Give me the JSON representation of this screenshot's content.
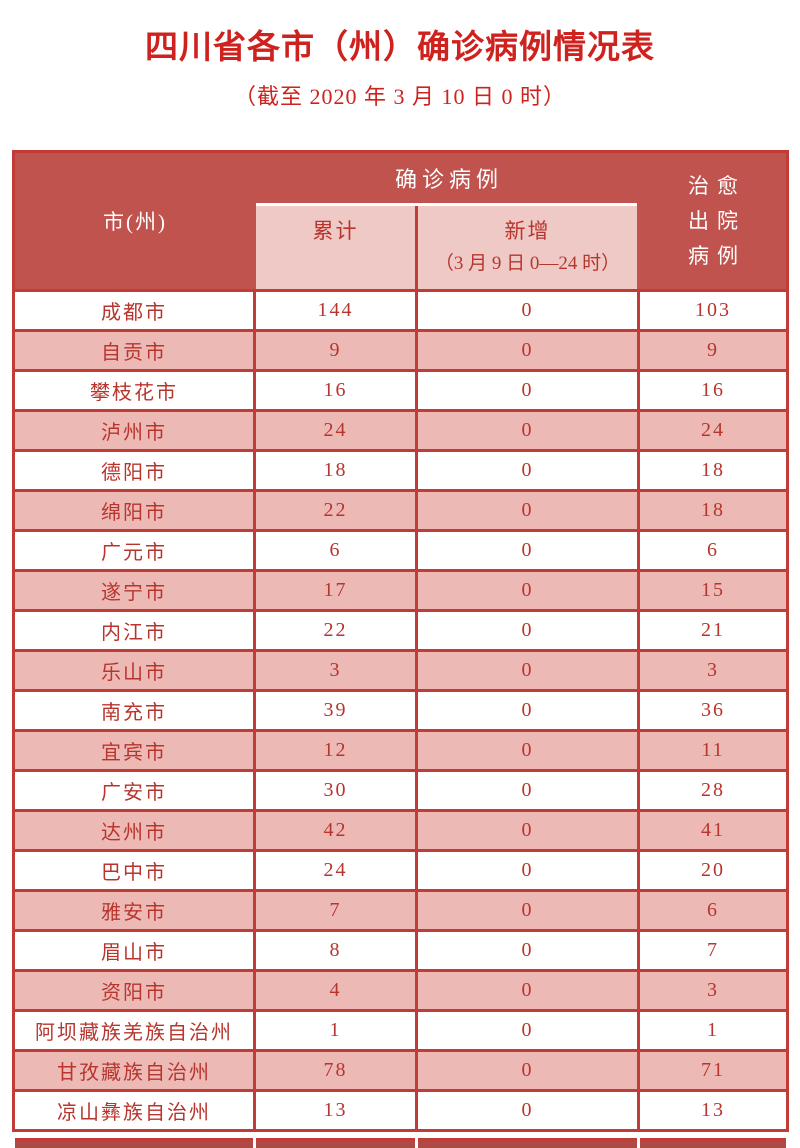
{
  "title": "四川省各市（州）确诊病例情况表",
  "subtitle": "（截至 2020 年 3 月 10 日 0 时）",
  "table": {
    "col_city": "市(州)",
    "col_confirmed": "确诊病例",
    "col_cumulative": "累计",
    "col_new": "新增",
    "col_new_sub": "（3 月 9 日 0—24 时）",
    "col_cured_lines": [
      "治愈",
      "出院",
      "病例"
    ],
    "rows": [
      {
        "city": "成都市",
        "cumulative": "144",
        "new": "0",
        "cured": "103"
      },
      {
        "city": "自贡市",
        "cumulative": "9",
        "new": "0",
        "cured": "9"
      },
      {
        "city": "攀枝花市",
        "cumulative": "16",
        "new": "0",
        "cured": "16"
      },
      {
        "city": "泸州市",
        "cumulative": "24",
        "new": "0",
        "cured": "24"
      },
      {
        "city": "德阳市",
        "cumulative": "18",
        "new": "0",
        "cured": "18"
      },
      {
        "city": "绵阳市",
        "cumulative": "22",
        "new": "0",
        "cured": "18"
      },
      {
        "city": "广元市",
        "cumulative": "6",
        "new": "0",
        "cured": "6"
      },
      {
        "city": "遂宁市",
        "cumulative": "17",
        "new": "0",
        "cured": "15"
      },
      {
        "city": "内江市",
        "cumulative": "22",
        "new": "0",
        "cured": "21"
      },
      {
        "city": "乐山市",
        "cumulative": "3",
        "new": "0",
        "cured": "3"
      },
      {
        "city": "南充市",
        "cumulative": "39",
        "new": "0",
        "cured": "36"
      },
      {
        "city": "宜宾市",
        "cumulative": "12",
        "new": "0",
        "cured": "11"
      },
      {
        "city": "广安市",
        "cumulative": "30",
        "new": "0",
        "cured": "28"
      },
      {
        "city": "达州市",
        "cumulative": "42",
        "new": "0",
        "cured": "41"
      },
      {
        "city": "巴中市",
        "cumulative": "24",
        "new": "0",
        "cured": "20"
      },
      {
        "city": "雅安市",
        "cumulative": "7",
        "new": "0",
        "cured": "6"
      },
      {
        "city": "眉山市",
        "cumulative": "8",
        "new": "0",
        "cured": "7"
      },
      {
        "city": "资阳市",
        "cumulative": "4",
        "new": "0",
        "cured": "3"
      },
      {
        "city": "阿坝藏族羌族自治州",
        "cumulative": "1",
        "new": "0",
        "cured": "1"
      },
      {
        "city": "甘孜藏族自治州",
        "cumulative": "78",
        "new": "0",
        "cured": "71"
      },
      {
        "city": "凉山彝族自治州",
        "cumulative": "13",
        "new": "0",
        "cured": "13"
      }
    ]
  },
  "colors": {
    "title_red": "#ce221e",
    "header_bg": "#c1534e",
    "subheader_pink": "#efc9c6",
    "row_pink": "#edb9b5",
    "border_red": "#c23c37",
    "cell_text_red": "#b8352e",
    "header_text": "#ffffff"
  },
  "chart_data": {
    "type": "table",
    "title": "四川省各市（州）确诊病例情况表",
    "subtitle": "（截至 2020 年 3 月 10 日 0 时）",
    "columns": [
      "市(州)",
      "确诊病例-累计",
      "确诊病例-新增（3 月 9 日 0—24 时）",
      "治愈出院病例"
    ],
    "rows": [
      [
        "成都市",
        144,
        0,
        103
      ],
      [
        "自贡市",
        9,
        0,
        9
      ],
      [
        "攀枝花市",
        16,
        0,
        16
      ],
      [
        "泸州市",
        24,
        0,
        24
      ],
      [
        "德阳市",
        18,
        0,
        18
      ],
      [
        "绵阳市",
        22,
        0,
        18
      ],
      [
        "广元市",
        6,
        0,
        6
      ],
      [
        "遂宁市",
        17,
        0,
        15
      ],
      [
        "内江市",
        22,
        0,
        21
      ],
      [
        "乐山市",
        3,
        0,
        3
      ],
      [
        "南充市",
        39,
        0,
        36
      ],
      [
        "宜宾市",
        12,
        0,
        11
      ],
      [
        "广安市",
        30,
        0,
        28
      ],
      [
        "达州市",
        42,
        0,
        41
      ],
      [
        "巴中市",
        24,
        0,
        20
      ],
      [
        "雅安市",
        7,
        0,
        6
      ],
      [
        "眉山市",
        8,
        0,
        7
      ],
      [
        "资阳市",
        4,
        0,
        3
      ],
      [
        "阿坝藏族羌族自治州",
        1,
        0,
        1
      ],
      [
        "甘孜藏族自治州",
        78,
        0,
        71
      ],
      [
        "凉山彝族自治州",
        13,
        0,
        13
      ]
    ]
  }
}
